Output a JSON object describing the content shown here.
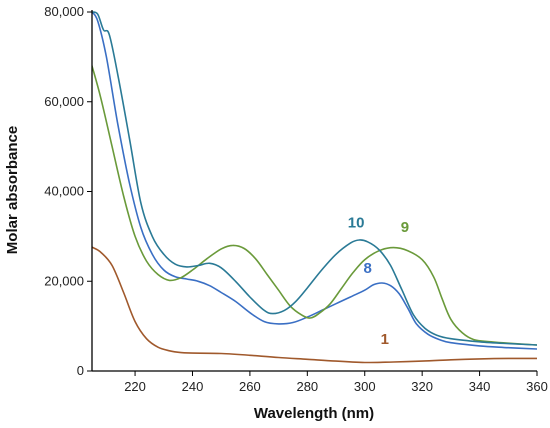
{
  "chart_data": {
    "type": "line",
    "title": "",
    "xlabel": "Wavelength (nm)",
    "ylabel": "Molar absorbance",
    "xlim": [
      205,
      360
    ],
    "ylim": [
      0,
      80000
    ],
    "xticks": [
      220,
      240,
      260,
      280,
      300,
      320,
      340,
      360
    ],
    "yticks": [
      0,
      20000,
      40000,
      60000,
      80000
    ],
    "ytick_labels": [
      "0",
      "20,000",
      "40,000",
      "60,000",
      "80,000"
    ],
    "grid": false,
    "legend": "none",
    "series": [
      {
        "name": "1",
        "color": "#a0592c",
        "label_at": [
          307,
          6000
        ],
        "points": [
          [
            205,
            27600
          ],
          [
            208,
            26500
          ],
          [
            212,
            23500
          ],
          [
            216,
            17500
          ],
          [
            220,
            11000
          ],
          [
            224,
            7200
          ],
          [
            228,
            5300
          ],
          [
            232,
            4500
          ],
          [
            236,
            4100
          ],
          [
            240,
            4000
          ],
          [
            250,
            3900
          ],
          [
            260,
            3500
          ],
          [
            270,
            3000
          ],
          [
            280,
            2600
          ],
          [
            290,
            2200
          ],
          [
            300,
            1900
          ],
          [
            310,
            2000
          ],
          [
            320,
            2200
          ],
          [
            330,
            2500
          ],
          [
            340,
            2700
          ],
          [
            350,
            2800
          ],
          [
            360,
            2800
          ]
        ]
      },
      {
        "name": "8",
        "color": "#3a6fc4",
        "label_at": [
          301,
          21800
        ],
        "points": [
          [
            205,
            80000
          ],
          [
            207,
            78000
          ],
          [
            210,
            70000
          ],
          [
            214,
            55000
          ],
          [
            218,
            42000
          ],
          [
            222,
            32000
          ],
          [
            226,
            26000
          ],
          [
            230,
            22500
          ],
          [
            234,
            21000
          ],
          [
            238,
            20500
          ],
          [
            242,
            20000
          ],
          [
            246,
            19000
          ],
          [
            250,
            17500
          ],
          [
            255,
            15500
          ],
          [
            260,
            13000
          ],
          [
            265,
            11000
          ],
          [
            270,
            10500
          ],
          [
            275,
            10800
          ],
          [
            280,
            12000
          ],
          [
            285,
            13500
          ],
          [
            290,
            15000
          ],
          [
            295,
            16500
          ],
          [
            300,
            18000
          ],
          [
            303,
            19200
          ],
          [
            306,
            19600
          ],
          [
            309,
            19000
          ],
          [
            312,
            17200
          ],
          [
            315,
            14000
          ],
          [
            318,
            10500
          ],
          [
            322,
            8200
          ],
          [
            326,
            7000
          ],
          [
            330,
            6300
          ],
          [
            340,
            5600
          ],
          [
            350,
            5200
          ],
          [
            360,
            4900
          ]
        ]
      },
      {
        "name": "9",
        "color": "#6a9a3a",
        "label_at": [
          314,
          31000
        ],
        "points": [
          [
            205,
            68000
          ],
          [
            208,
            61000
          ],
          [
            212,
            50000
          ],
          [
            216,
            39000
          ],
          [
            220,
            30000
          ],
          [
            224,
            24500
          ],
          [
            228,
            21500
          ],
          [
            232,
            20200
          ],
          [
            236,
            20800
          ],
          [
            240,
            22500
          ],
          [
            245,
            25000
          ],
          [
            250,
            27200
          ],
          [
            254,
            28000
          ],
          [
            258,
            27300
          ],
          [
            262,
            25000
          ],
          [
            266,
            21500
          ],
          [
            270,
            18000
          ],
          [
            274,
            14500
          ],
          [
            278,
            12500
          ],
          [
            281,
            11800
          ],
          [
            284,
            12800
          ],
          [
            288,
            15000
          ],
          [
            292,
            18500
          ],
          [
            296,
            22000
          ],
          [
            300,
            24800
          ],
          [
            305,
            26800
          ],
          [
            310,
            27500
          ],
          [
            315,
            26800
          ],
          [
            320,
            24800
          ],
          [
            324,
            21000
          ],
          [
            327,
            16000
          ],
          [
            330,
            11500
          ],
          [
            334,
            8500
          ],
          [
            338,
            7000
          ],
          [
            344,
            6500
          ],
          [
            350,
            6200
          ],
          [
            360,
            5800
          ]
        ]
      },
      {
        "name": "10",
        "color": "#2a7a96",
        "label_at": [
          297,
          32000
        ],
        "points": [
          [
            205,
            80000
          ],
          [
            207,
            79500
          ],
          [
            209,
            76000
          ],
          [
            211,
            75000
          ],
          [
            214,
            66000
          ],
          [
            218,
            52000
          ],
          [
            222,
            37500
          ],
          [
            226,
            30000
          ],
          [
            230,
            26000
          ],
          [
            234,
            23800
          ],
          [
            238,
            23200
          ],
          [
            242,
            23500
          ],
          [
            246,
            24000
          ],
          [
            250,
            23000
          ],
          [
            255,
            20000
          ],
          [
            260,
            16500
          ],
          [
            265,
            13500
          ],
          [
            268,
            12800
          ],
          [
            272,
            13500
          ],
          [
            276,
            15500
          ],
          [
            280,
            18500
          ],
          [
            285,
            22500
          ],
          [
            290,
            26000
          ],
          [
            295,
            28500
          ],
          [
            298,
            29200
          ],
          [
            301,
            28800
          ],
          [
            305,
            27000
          ],
          [
            309,
            23500
          ],
          [
            313,
            18000
          ],
          [
            317,
            12500
          ],
          [
            321,
            9500
          ],
          [
            325,
            8000
          ],
          [
            330,
            7200
          ],
          [
            340,
            6500
          ],
          [
            350,
            6100
          ],
          [
            360,
            5800
          ]
        ]
      }
    ]
  }
}
